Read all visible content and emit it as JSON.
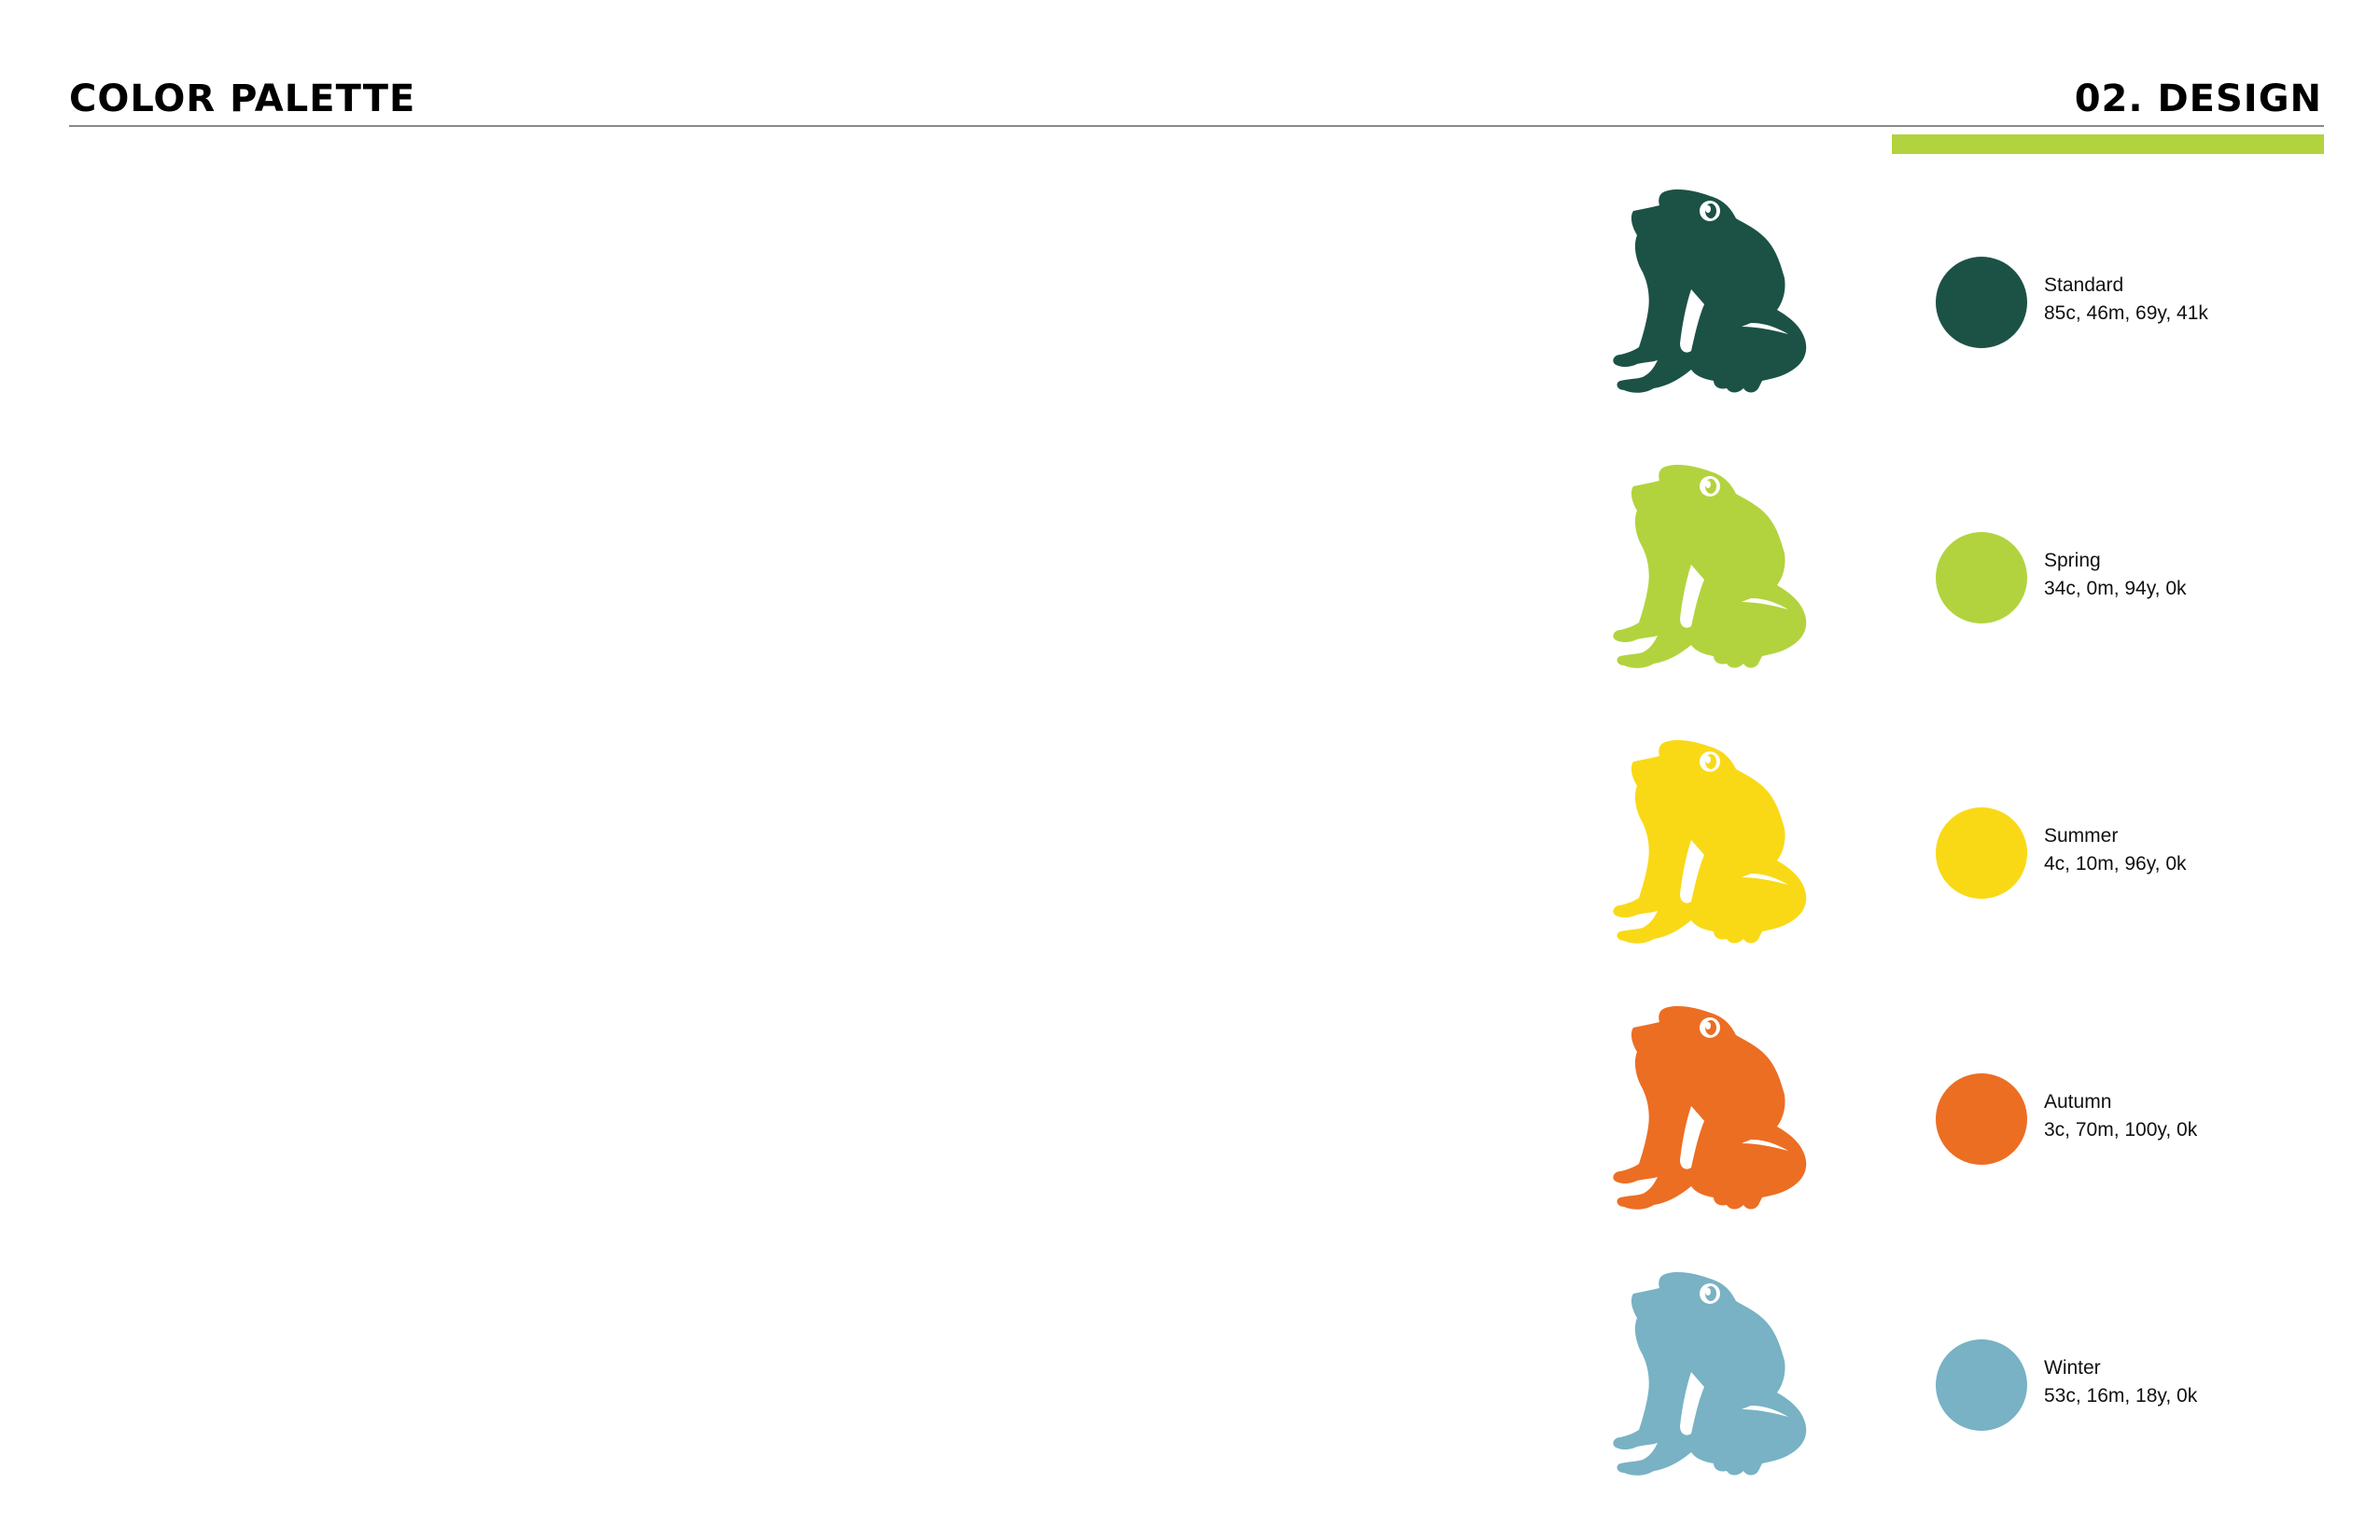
{
  "header": {
    "title": "COLOR PALETTE",
    "section": "02. DESIGN"
  },
  "accent_color": "#b2d33e",
  "palette": [
    {
      "name": "Standard",
      "cmyk": "85c, 46m, 69y, 41k",
      "hex": "#1c5246",
      "icon": "frog-icon"
    },
    {
      "name": "Spring",
      "cmyk": "34c, 0m, 94y, 0k",
      "hex": "#b2d33e",
      "icon": "frog-icon"
    },
    {
      "name": "Summer",
      "cmyk": "4c, 10m, 96y, 0k",
      "hex": "#f9d916",
      "icon": "frog-icon"
    },
    {
      "name": "Autumn",
      "cmyk": "3c, 70m, 100y, 0k",
      "hex": "#ec6e23",
      "icon": "frog-icon"
    },
    {
      "name": "Winter",
      "cmyk": "53c, 16m, 18y, 0k",
      "hex": "#78b2c4",
      "icon": "frog-icon"
    }
  ]
}
